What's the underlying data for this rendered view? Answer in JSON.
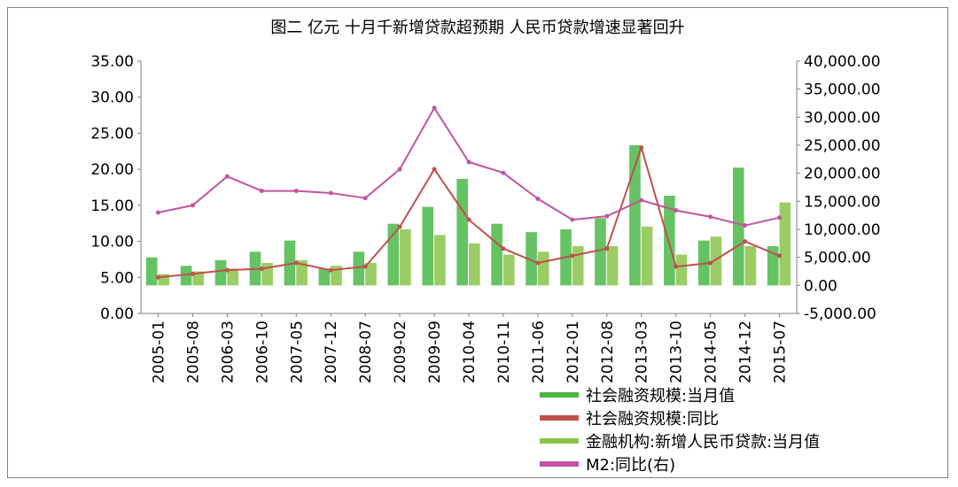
{
  "chart_data": {
    "type": "bar",
    "title": "图二 亿元 十月千新增贷款超预期 人民币贷款增速显著回升",
    "y_left_ticks": [
      "35.00",
      "30.00",
      "25.00",
      "20.00",
      "15.00",
      "10.00",
      "5.00",
      "0.00"
    ],
    "y_right_ticks": [
      "40,000.00",
      "35,000.00",
      "30,000.00",
      "25,000.00",
      "20,000.00",
      "15,000.00",
      "10,000.00",
      "5,000.00",
      "0.00",
      "-5,000.00"
    ],
    "y_left_lim": [
      0,
      35
    ],
    "y_right_lim": [
      -5000,
      40000
    ],
    "categories": [
      "2005-01",
      "2005-08",
      "2006-03",
      "2006-10",
      "2007-05",
      "2007-12",
      "2008-07",
      "2009-02",
      "2009-09",
      "2010-04",
      "2010-11",
      "2011-06",
      "2012-01",
      "2012-08",
      "2013-03",
      "2013-10",
      "2014-05",
      "2014-12",
      "2015-07"
    ],
    "series": [
      {
        "name": "社会融资规模:当月值",
        "axis": "right",
        "color": "#4ab848",
        "values": [
          5000,
          3500,
          4500,
          6000,
          8000,
          3000,
          6000,
          11000,
          14000,
          19000,
          11000,
          9500,
          10000,
          12000,
          25000,
          16000,
          8000,
          21000,
          7000
        ]
      },
      {
        "name": "社会融资规模:同比",
        "axis": "left",
        "color": "#c0504d",
        "values": [
          5.0,
          5.5,
          6.0,
          6.2,
          7.0,
          6.0,
          6.5,
          12.0,
          20.0,
          13.0,
          9.0,
          7.0,
          8.0,
          9.0,
          23.0,
          6.5,
          7.0,
          10.0,
          8.0
        ]
      },
      {
        "name": "金融机构:新增人民币贷款:当月值",
        "axis": "right",
        "color": "#8bc34a",
        "values": [
          2000,
          2500,
          3000,
          4000,
          4500,
          3500,
          4000,
          10000,
          9000,
          7500,
          5500,
          6000,
          7000,
          7000,
          10500,
          5500,
          8700,
          7000,
          14800
        ]
      },
      {
        "name": "M2:同比(右)",
        "axis": "left",
        "color": "#c2559d",
        "values": [
          14.0,
          15.0,
          19.0,
          17.0,
          17.0,
          16.7,
          16.0,
          20.0,
          28.5,
          21.0,
          19.5,
          15.9,
          13.0,
          13.5,
          15.7,
          14.3,
          13.4,
          12.2,
          13.3
        ]
      }
    ],
    "legend_position": "bottom-right",
    "grid": false
  },
  "legend": {
    "items": [
      {
        "label": "社会融资规模:当月值",
        "color": "#4ab848"
      },
      {
        "label": "社会融资规模:同比",
        "color": "#c0504d"
      },
      {
        "label": "金融机构:新增人民币贷款:当月值",
        "color": "#8bc34a"
      },
      {
        "label": "M2:同比(右)",
        "color": "#c2559d"
      }
    ]
  }
}
